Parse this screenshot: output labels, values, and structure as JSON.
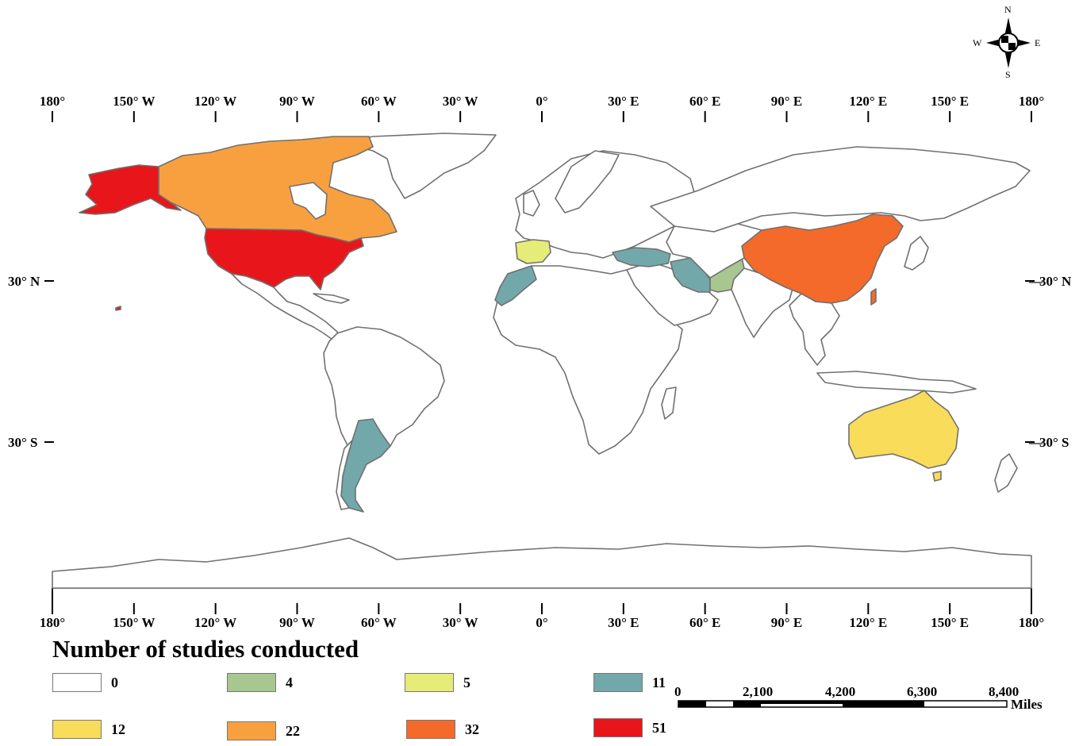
{
  "legend": {
    "title": "Number of studies conducted",
    "items": [
      {
        "label": "0",
        "color": "#ffffff"
      },
      {
        "label": "4",
        "color": "#a8c690"
      },
      {
        "label": "5",
        "color": "#e6ec78"
      },
      {
        "label": "11",
        "color": "#72a8aa"
      },
      {
        "label": "12",
        "color": "#f8dc5a"
      },
      {
        "label": "22",
        "color": "#f8a040"
      },
      {
        "label": "32",
        "color": "#f46a2a"
      },
      {
        "label": "51",
        "color": "#e8161a"
      }
    ]
  },
  "longitude_labels": [
    "180°",
    "150° W",
    "120° W",
    "90° W",
    "60° W",
    "30° W",
    "0°",
    "30° E",
    "60° E",
    "90° E",
    "120° E",
    "150° E",
    "180°"
  ],
  "latitude_labels": {
    "left": [
      "30° N",
      "30° S"
    ],
    "right": [
      "30° N",
      "30° S"
    ]
  },
  "scale_bar": {
    "ticks": [
      "0",
      "2,100",
      "4,200",
      "6,300",
      "8,400"
    ],
    "unit": "Miles"
  },
  "compass": {
    "n": "N",
    "s": "S",
    "e": "E",
    "w": "W"
  },
  "countries": [
    {
      "name": "United States",
      "studies": 51
    },
    {
      "name": "Canada",
      "studies": 22
    },
    {
      "name": "China",
      "studies": 32
    },
    {
      "name": "Australia",
      "studies": 12
    },
    {
      "name": "Argentina",
      "studies": 11
    },
    {
      "name": "Iran",
      "studies": 11
    },
    {
      "name": "Turkey",
      "studies": 11
    },
    {
      "name": "Morocco",
      "studies": 11
    },
    {
      "name": "Spain",
      "studies": 5
    },
    {
      "name": "Pakistan",
      "studies": 4
    }
  ]
}
